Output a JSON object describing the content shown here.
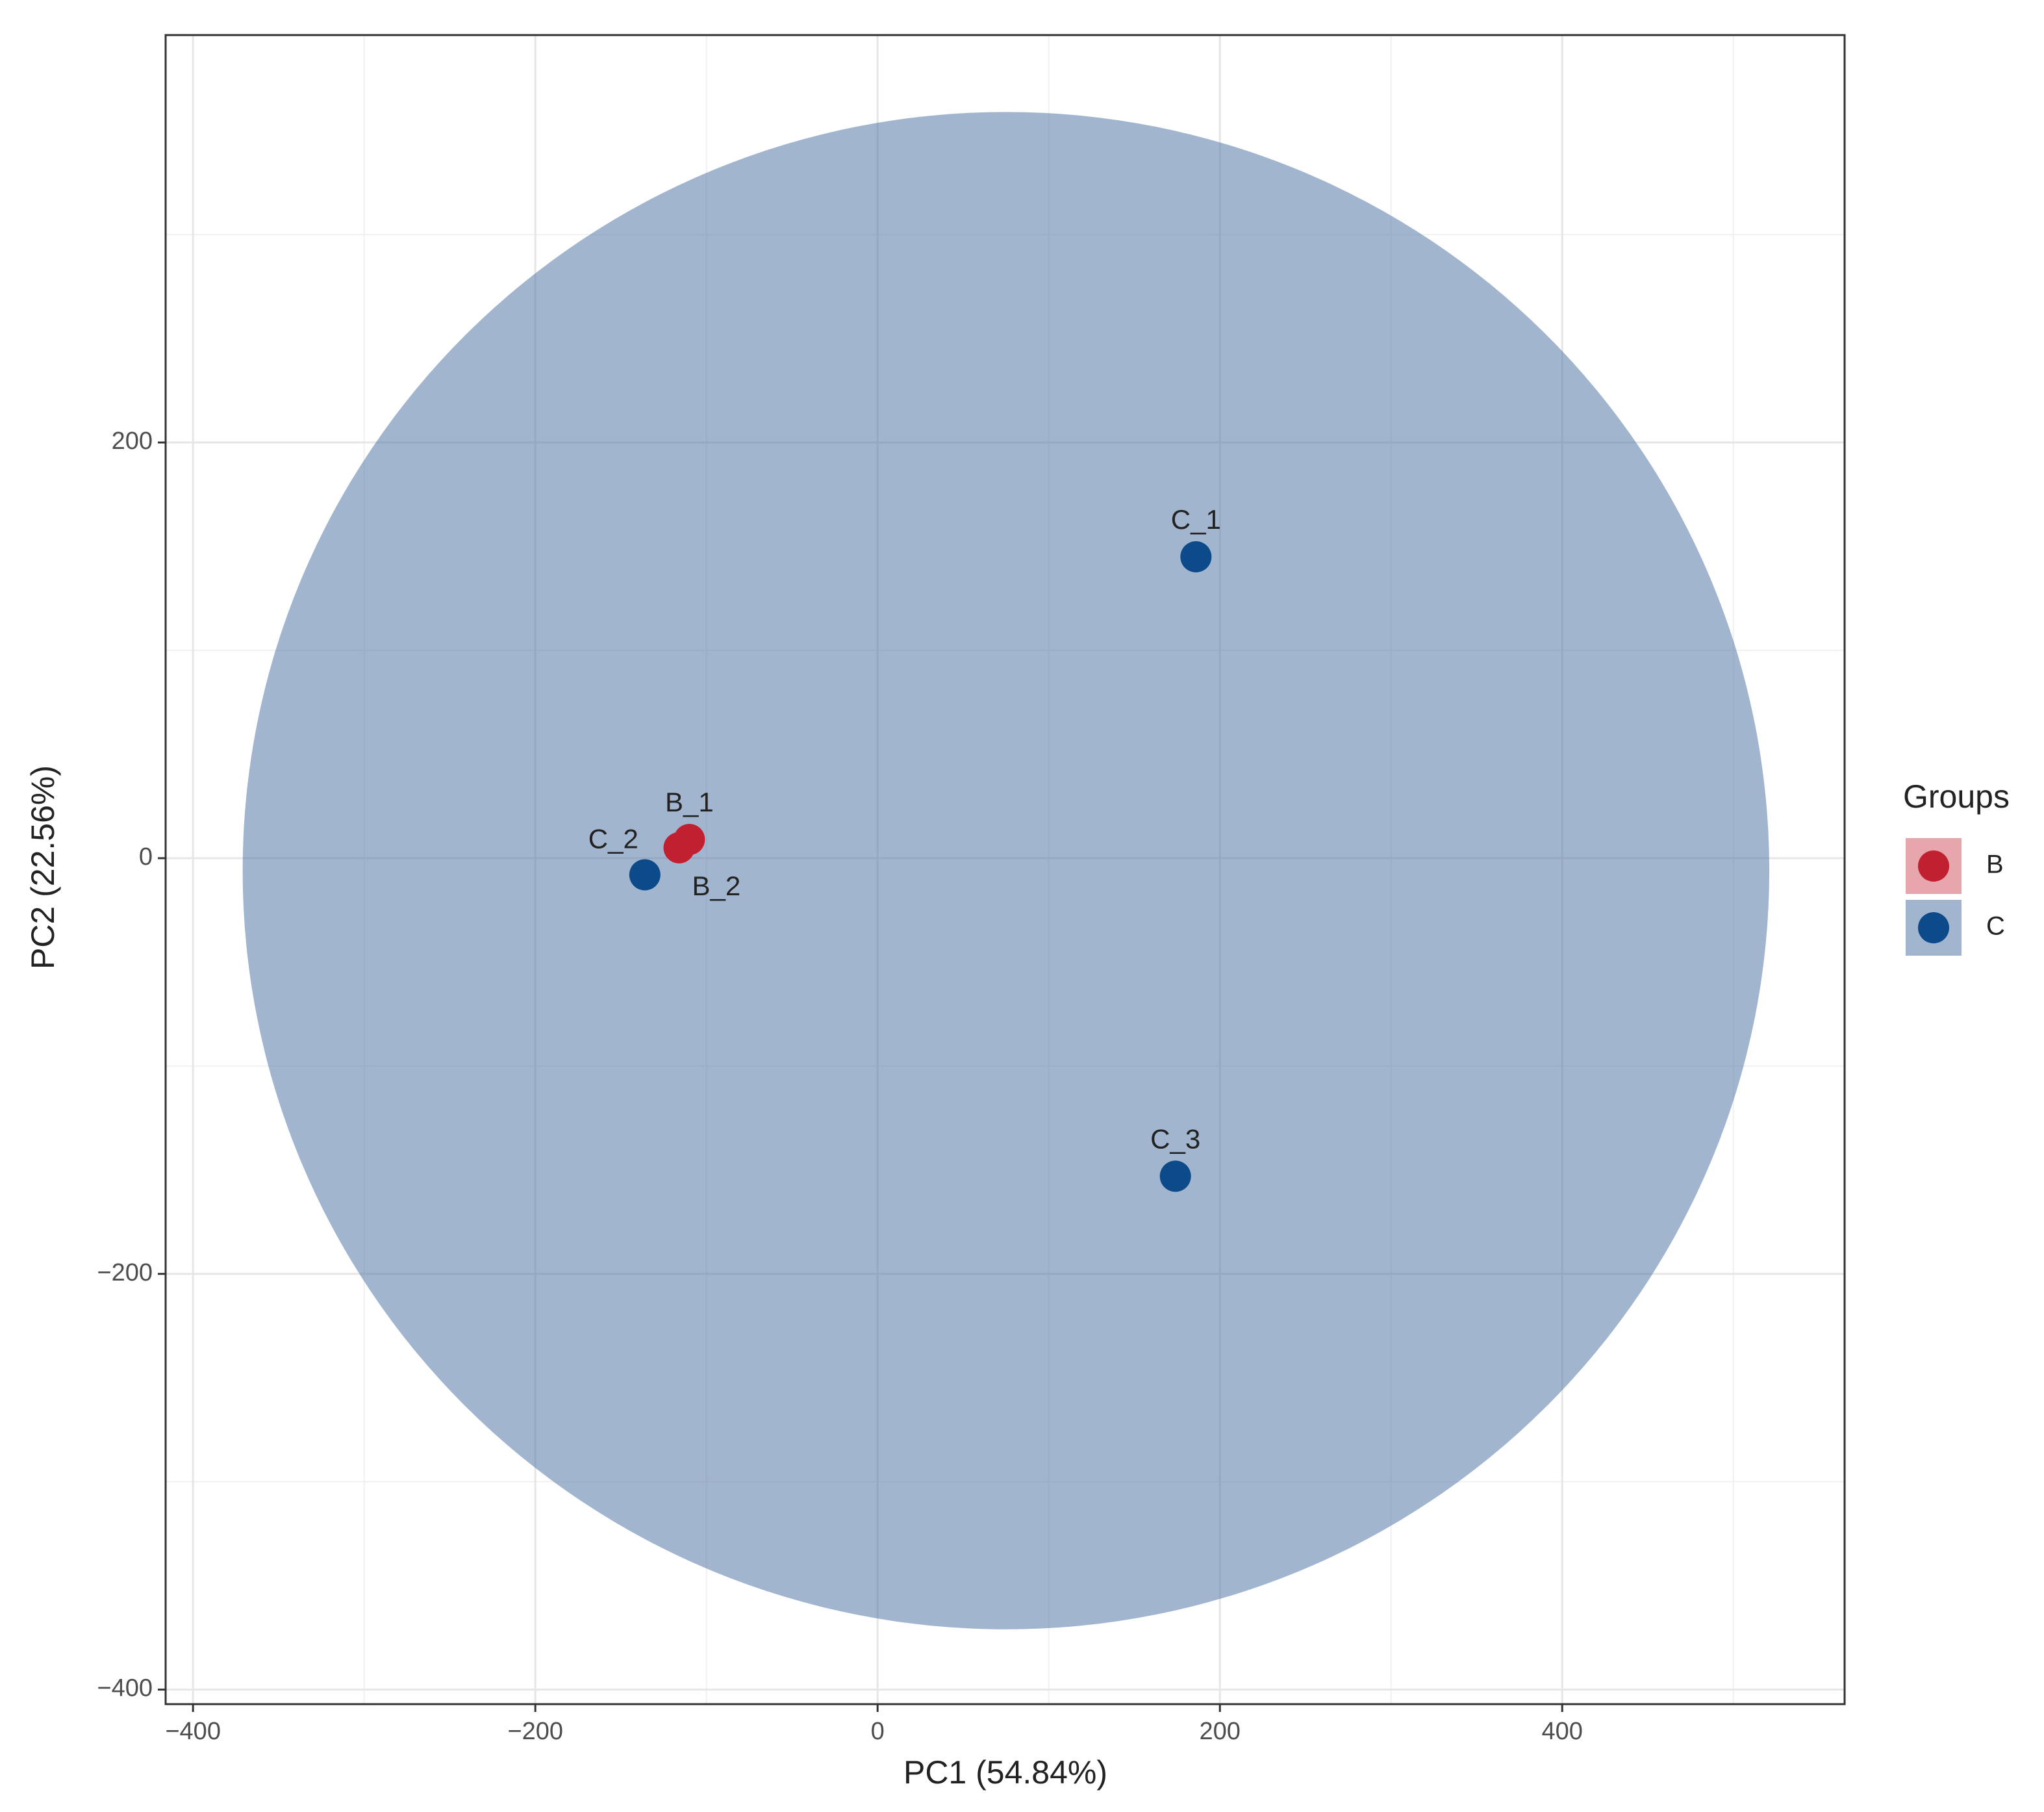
{
  "chart_data": {
    "type": "scatter",
    "x_label": "PC1 (54.84%)",
    "y_label": "PC2 (22.56%)",
    "xlim": [
      -416,
      565
    ],
    "ylim": [
      -407,
      396
    ],
    "xticks": [
      {
        "value": -400,
        "label": "−400"
      },
      {
        "value": -200,
        "label": "−200"
      },
      0,
      200,
      400
    ],
    "yticks": [
      {
        "value": -400,
        "label": "−400"
      },
      {
        "value": -200,
        "label": "−200"
      },
      0,
      200
    ],
    "x_minor_gridlines": [
      -300,
      -100,
      100,
      300,
      500
    ],
    "y_minor_gridlines": [
      -300,
      -100,
      100,
      300
    ],
    "grid": true,
    "legend_title": "Groups",
    "legend_position": "right",
    "series": [
      {
        "name": "B",
        "color": "#c0202f",
        "x": [
          -110,
          -116
        ],
        "values": [
          9,
          5
        ],
        "labels": [
          "B_1",
          "B_2"
        ]
      },
      {
        "name": "C",
        "color": "#0c4a8a",
        "x": [
          186,
          -136,
          174
        ],
        "values": [
          145,
          -8,
          -153
        ],
        "labels": [
          "C_1",
          "C_2",
          "C_3"
        ],
        "ellipse": {
          "color": "#456c9e",
          "center": [
            75,
            -6
          ],
          "radii": [
            446,
            365
          ]
        }
      }
    ]
  }
}
